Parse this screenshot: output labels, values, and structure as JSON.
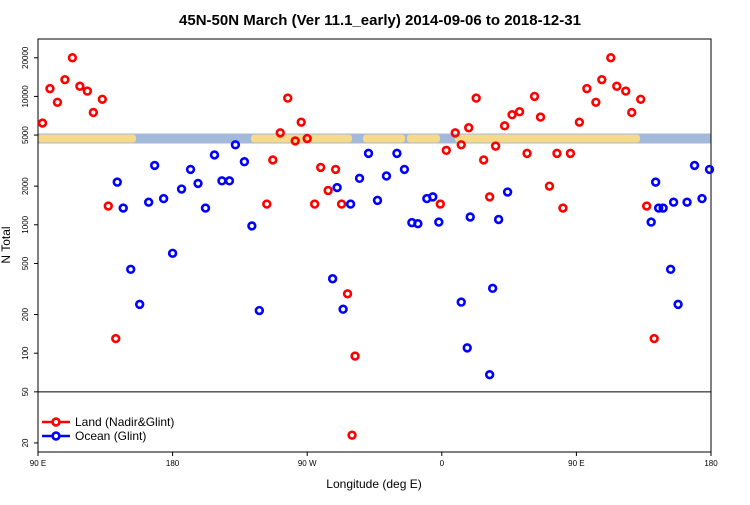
{
  "chart_data": {
    "type": "scatter",
    "title": "45N-50N March (Ver 11.1_early)   2014-09-06 to 2018-12-31",
    "xlabel": "Longitude (deg E)",
    "ylabel": "N Total",
    "x_ticks": [
      {
        "value": 90,
        "label": "90 E"
      },
      {
        "value": 180,
        "label": "180"
      },
      {
        "value": 270,
        "label": "90 W"
      },
      {
        "value": 360,
        "label": "0"
      },
      {
        "value": 450,
        "label": "90 E"
      },
      {
        "value": 540,
        "label": "180"
      }
    ],
    "y_ticks": [
      20,
      50,
      100,
      200,
      500,
      1000,
      2000,
      5000,
      10000,
      20000
    ],
    "ylim": [
      17,
      28000
    ],
    "xlim": [
      90,
      540
    ],
    "scale_y": "log",
    "divider_y": 50,
    "land_ocean_band": {
      "y_center": 4700
    },
    "legend_position": "bottom-left",
    "series": [
      {
        "name": "Land (Nadir&Glint)",
        "color": "#ff0000",
        "points": [
          [
            93,
            6200
          ],
          [
            98,
            11500
          ],
          [
            103,
            9000
          ],
          [
            108,
            13500
          ],
          [
            113,
            20000
          ],
          [
            118,
            12000
          ],
          [
            123,
            11000
          ],
          [
            127,
            7500
          ],
          [
            133,
            9500
          ],
          [
            137,
            1400
          ],
          [
            142,
            130
          ],
          [
            243,
            1450
          ],
          [
            247,
            3200
          ],
          [
            252,
            5200
          ],
          [
            257,
            9700
          ],
          [
            262,
            4500
          ],
          [
            266,
            6300
          ],
          [
            270,
            4700
          ],
          [
            275,
            1450
          ],
          [
            279,
            2800
          ],
          [
            284,
            1850
          ],
          [
            289,
            2700
          ],
          [
            293,
            1450
          ],
          [
            297,
            290
          ],
          [
            302,
            95
          ],
          [
            300,
            23
          ],
          [
            359,
            1450
          ],
          [
            363,
            3800
          ],
          [
            369,
            5200
          ],
          [
            373,
            4200
          ],
          [
            378,
            5700
          ],
          [
            383,
            9700
          ],
          [
            388,
            3200
          ],
          [
            392,
            1650
          ],
          [
            396,
            4100
          ],
          [
            402,
            5900
          ],
          [
            407,
            7200
          ],
          [
            412,
            7600
          ],
          [
            417,
            3600
          ],
          [
            422,
            10000
          ],
          [
            426,
            6900
          ],
          [
            432,
            2000
          ],
          [
            437,
            3600
          ],
          [
            441,
            1350
          ],
          [
            446,
            3600
          ],
          [
            452,
            6300
          ],
          [
            457,
            11500
          ],
          [
            463,
            9000
          ],
          [
            467,
            13500
          ],
          [
            473,
            20000
          ],
          [
            477,
            12000
          ],
          [
            483,
            11000
          ],
          [
            487,
            7500
          ],
          [
            493,
            9500
          ],
          [
            497,
            1400
          ],
          [
            502,
            130
          ]
        ]
      },
      {
        "name": "Ocean (Glint)",
        "color": "#0000ff",
        "points": [
          [
            143,
            2150
          ],
          [
            147,
            1350
          ],
          [
            152,
            450
          ],
          [
            158,
            240
          ],
          [
            164,
            1500
          ],
          [
            168,
            2900
          ],
          [
            174,
            1600
          ],
          [
            180,
            600
          ],
          [
            186,
            1900
          ],
          [
            192,
            2700
          ],
          [
            197,
            2100
          ],
          [
            202,
            1350
          ],
          [
            208,
            3500
          ],
          [
            213,
            2200
          ],
          [
            218,
            2200
          ],
          [
            222,
            4200
          ],
          [
            228,
            3100
          ],
          [
            233,
            980
          ],
          [
            238,
            215
          ],
          [
            287,
            380
          ],
          [
            290,
            1950
          ],
          [
            294,
            220
          ],
          [
            299,
            1450
          ],
          [
            305,
            2300
          ],
          [
            311,
            3600
          ],
          [
            317,
            1550
          ],
          [
            323,
            2400
          ],
          [
            330,
            3600
          ],
          [
            335,
            2700
          ],
          [
            340,
            1040
          ],
          [
            344,
            1020
          ],
          [
            350,
            1600
          ],
          [
            354,
            1650
          ],
          [
            358,
            1050
          ],
          [
            373,
            250
          ],
          [
            377,
            110
          ],
          [
            379,
            1150
          ],
          [
            392,
            68
          ],
          [
            394,
            320
          ],
          [
            398,
            1100
          ],
          [
            404,
            1800
          ],
          [
            503,
            2150
          ],
          [
            508,
            1350
          ],
          [
            513,
            450
          ],
          [
            518,
            240
          ],
          [
            524,
            1500
          ],
          [
            529,
            2900
          ],
          [
            534,
            1600
          ],
          [
            539,
            2700
          ],
          [
            500,
            1050
          ],
          [
            505,
            1350
          ],
          [
            515,
            1500
          ]
        ]
      }
    ]
  }
}
